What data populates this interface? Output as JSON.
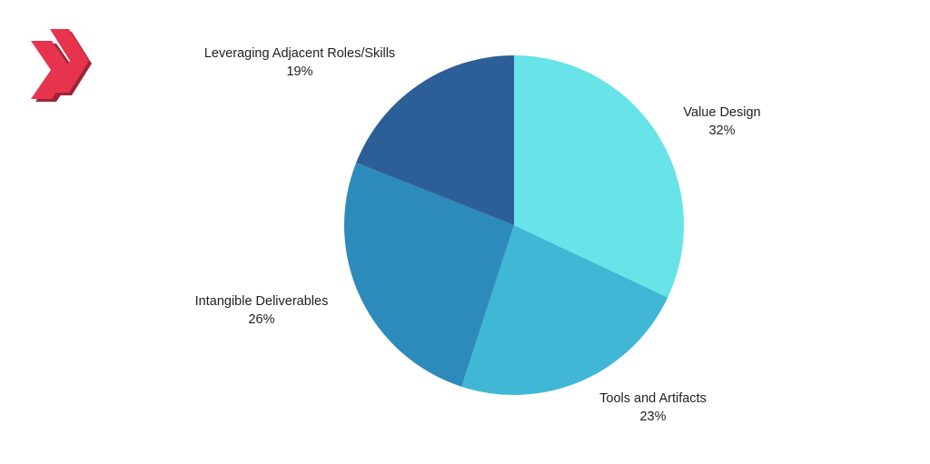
{
  "logo": {
    "icon": "double-chevron-right-icon",
    "color": "#e8334f",
    "shadow_color": "#9c2436"
  },
  "chart_data": {
    "type": "pie",
    "title": "",
    "slices": [
      {
        "label": "Value Design",
        "value": 32,
        "display": "32%",
        "color": "#68e3e8"
      },
      {
        "label": "Tools and Artifacts",
        "value": 23,
        "display": "23%",
        "color": "#41b7d6"
      },
      {
        "label": "Intangible Deliverables",
        "value": 26,
        "display": "26%",
        "color": "#2d8bbb"
      },
      {
        "label": "Leveraging Adjacent Roles/Skills",
        "value": 19,
        "display": "19%",
        "color": "#2c5f97"
      }
    ],
    "start": "12 o'clock",
    "direction": "clockwise",
    "legend": "none",
    "labels": "outside"
  }
}
